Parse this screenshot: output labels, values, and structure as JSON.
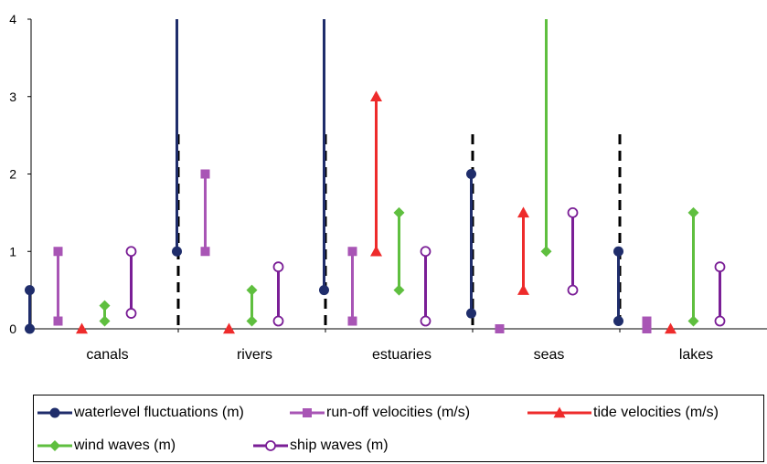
{
  "chart_data": {
    "type": "range",
    "categories": [
      "canals",
      "rivers",
      "estuaries",
      "seas",
      "lakes"
    ],
    "ylim": [
      0,
      4
    ],
    "yticks": [
      "0",
      "1",
      "2",
      "3",
      "4"
    ],
    "title": "",
    "xlabel": "",
    "ylabel": "",
    "legend_position": "bottom",
    "series": [
      {
        "name": "waterlevel fluctuations (m)",
        "color": "#1f2d6b",
        "marker": "circle-filled",
        "ranges": [
          [
            0,
            0.5
          ],
          [
            1,
            4
          ],
          [
            0.5,
            4
          ],
          [
            0.2,
            2
          ],
          [
            0.1,
            1
          ]
        ]
      },
      {
        "name": "run-off velocities (m/s)",
        "color": "#a855b5",
        "marker": "square",
        "ranges": [
          [
            0.1,
            1
          ],
          [
            1,
            2
          ],
          [
            0.1,
            1
          ],
          [
            0,
            0
          ],
          [
            0,
            0.1
          ]
        ]
      },
      {
        "name": "tide velocities (m/s)",
        "color": "#ee2b2b",
        "marker": "triangle",
        "ranges": [
          [
            0,
            0
          ],
          [
            0,
            0
          ],
          [
            1,
            3
          ],
          [
            0.5,
            1.5
          ],
          [
            0,
            0
          ]
        ]
      },
      {
        "name": "wind waves (m)",
        "color": "#5fbf3f",
        "marker": "diamond",
        "ranges": [
          [
            0.1,
            0.3
          ],
          [
            0.1,
            0.5
          ],
          [
            0.5,
            1.5
          ],
          [
            1,
            4
          ],
          [
            0.1,
            1.5
          ]
        ]
      },
      {
        "name": "ship waves (m)",
        "color": "#7a1e96",
        "marker": "circle-open",
        "ranges": [
          [
            0.2,
            1
          ],
          [
            0.1,
            0.8
          ],
          [
            0.1,
            1
          ],
          [
            0.5,
            1.5
          ],
          [
            0.1,
            0.8
          ]
        ]
      }
    ]
  }
}
